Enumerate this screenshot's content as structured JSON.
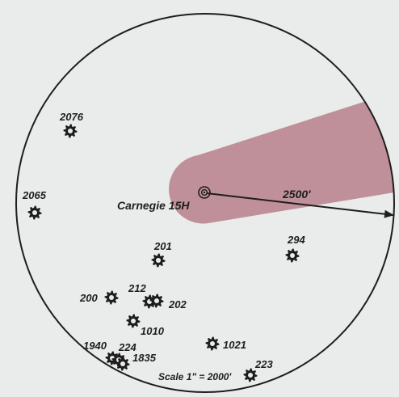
{
  "colors": {
    "background": "#e9ecea",
    "circle": "#1e1e1e",
    "lateral": "#b9808c",
    "ink": "#1e1e1e"
  },
  "center_well": {
    "label": "Carnegie 15H",
    "icon": "bullseye-icon"
  },
  "radius": {
    "label": "2500'"
  },
  "scale": {
    "label": "Scale 1\" = 2000'"
  },
  "wells": [
    {
      "id": "2076",
      "label": "2076",
      "icon": "well-symbol-icon"
    },
    {
      "id": "2065",
      "label": "2065",
      "icon": "well-symbol-icon"
    },
    {
      "id": "201",
      "label": "201",
      "icon": "well-symbol-icon"
    },
    {
      "id": "294",
      "label": "294",
      "icon": "well-symbol-icon"
    },
    {
      "id": "200",
      "label": "200",
      "icon": "well-symbol-icon"
    },
    {
      "id": "212",
      "label": "212",
      "icon": "well-symbol-icon"
    },
    {
      "id": "202",
      "label": "202",
      "icon": "well-symbol-icon"
    },
    {
      "id": "1010",
      "label": "1010",
      "icon": "well-symbol-icon"
    },
    {
      "id": "1021",
      "label": "1021",
      "icon": "well-symbol-icon"
    },
    {
      "id": "1940",
      "label": "1940",
      "icon": "well-symbol-icon"
    },
    {
      "id": "224",
      "label": "224",
      "icon": "well-symbol-icon"
    },
    {
      "id": "1835",
      "label": "1835",
      "icon": "well-symbol-icon"
    },
    {
      "id": "223",
      "label": "223",
      "icon": "well-symbol-icon"
    }
  ]
}
